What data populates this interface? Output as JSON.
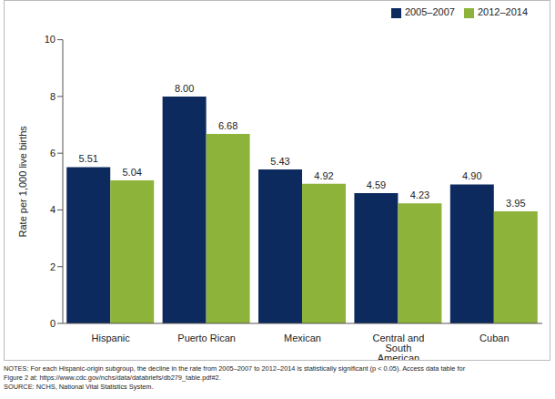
{
  "chart_data": {
    "type": "bar",
    "categories": [
      "Hispanic",
      "Puerto Rican",
      "Mexican",
      "Central and South American",
      "Cuban"
    ],
    "series": [
      {
        "name": "2005–2007",
        "color": "#0d2a5e",
        "values": [
          5.51,
          8.0,
          5.43,
          4.59,
          4.9
        ],
        "value_labels": [
          "5.51",
          "8.00",
          "5.43",
          "4.59",
          "4.90"
        ]
      },
      {
        "name": "2012–2014",
        "color": "#8db33a",
        "values": [
          5.04,
          6.68,
          4.92,
          4.23,
          3.95
        ],
        "value_labels": [
          "5.04",
          "6.68",
          "4.92",
          "4.23",
          "3.95"
        ]
      }
    ],
    "y_label": "Rate per 1,000 live births",
    "ylim": [
      0,
      10
    ],
    "yticks": [
      0,
      2,
      4,
      6,
      8,
      10
    ],
    "grid": false,
    "legend": "top-right",
    "data_labels": true,
    "annotations": [
      "NOTES: For each Hispanic-origin subgroup, the decline in the rate from 2005–2007 to 2012–2014 is statistically significant (p < 0.05). Access data table for",
      "Figure 2 at: https://www.cdc.gov/nchs/data/databriefs/db279_table.pdf#2.",
      "SOURCE: NCHS, National Vital Statistics System."
    ]
  }
}
